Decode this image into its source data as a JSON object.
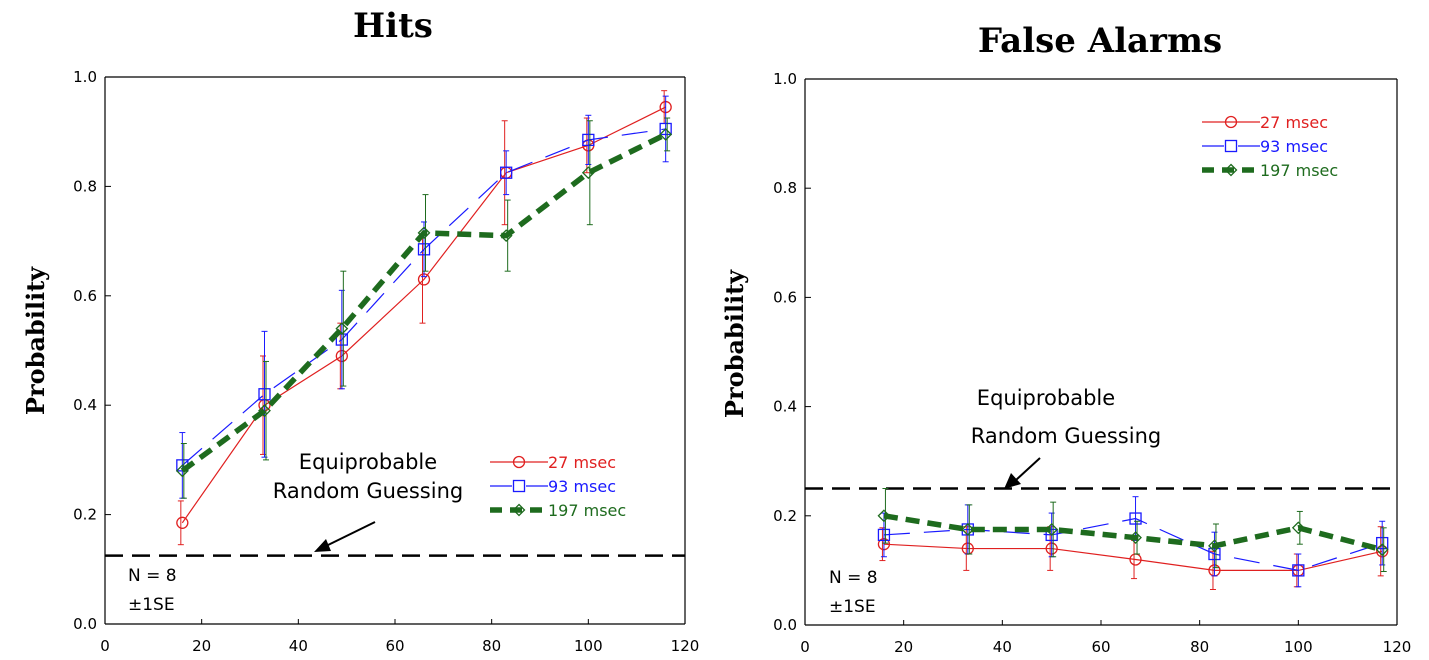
{
  "chart_data": [
    {
      "type": "line",
      "title": "Hits",
      "ylabel": "Probability",
      "xlabel": "",
      "xlim": [
        0,
        120
      ],
      "ylim": [
        0,
        1.0
      ],
      "xticks": [
        0,
        20,
        40,
        60,
        80,
        100,
        120
      ],
      "yticks": [
        0.0,
        0.2,
        0.4,
        0.6,
        0.8,
        1.0
      ],
      "x_tick_labels": [
        "0",
        "20",
        "40",
        "60",
        "80",
        "100",
        "120"
      ],
      "y_tick_labels": [
        "0.0",
        "0.2",
        "0.4",
        "0.6",
        "0.8",
        "1.0"
      ],
      "grid": false,
      "legend_position": "bottom-right",
      "reference_line": {
        "y": 0.125,
        "style": "dashed"
      },
      "annotation": {
        "lines": [
          "Equiprobable",
          "Random Guessing"
        ],
        "arrow_to": [
          42,
          0.13
        ]
      },
      "notes": [
        "N = 8",
        "±1SE"
      ],
      "series": [
        {
          "name": "27 msec",
          "color": "#e02020",
          "marker": "circle",
          "dash": "solid",
          "x": [
            16,
            33,
            49,
            66,
            83,
            100,
            116
          ],
          "y": [
            0.185,
            0.4,
            0.49,
            0.63,
            0.825,
            0.875,
            0.945
          ],
          "err": [
            0.04,
            0.09,
            0.06,
            0.08,
            0.095,
            0.05,
            0.03
          ]
        },
        {
          "name": "93 msec",
          "color": "#1a1aff",
          "marker": "square",
          "dash": "long",
          "x": [
            16,
            33,
            49,
            66,
            83,
            100,
            116
          ],
          "y": [
            0.29,
            0.42,
            0.52,
            0.685,
            0.825,
            0.885,
            0.905
          ],
          "err": [
            0.06,
            0.115,
            0.09,
            0.05,
            0.04,
            0.045,
            0.06
          ]
        },
        {
          "name": "197 msec",
          "color": "#1e6b1e",
          "marker": "diamond",
          "dash": "heavy",
          "x": [
            16,
            33,
            49,
            66,
            83,
            100,
            116
          ],
          "y": [
            0.28,
            0.39,
            0.54,
            0.715,
            0.71,
            0.825,
            0.895
          ],
          "err": [
            0.05,
            0.09,
            0.105,
            0.07,
            0.065,
            0.095,
            0.03
          ]
        }
      ]
    },
    {
      "type": "line",
      "title": "False Alarms",
      "ylabel": "Probability",
      "xlabel": "",
      "xlim": [
        0,
        120
      ],
      "ylim": [
        0,
        1.0
      ],
      "xticks": [
        0,
        20,
        40,
        60,
        80,
        100,
        120
      ],
      "yticks": [
        0.0,
        0.2,
        0.4,
        0.6,
        0.8,
        1.0
      ],
      "x_tick_labels": [
        "0",
        "20",
        "40",
        "60",
        "80",
        "100",
        "120"
      ],
      "y_tick_labels": [
        "0.0",
        "0.2",
        "0.4",
        "0.6",
        "0.8",
        "1.0"
      ],
      "grid": false,
      "legend_position": "top-right",
      "reference_line": {
        "y": 0.25,
        "style": "dashed"
      },
      "annotation": {
        "lines": [
          "Equiprobable",
          "Random Guessing"
        ],
        "arrow_to": [
          36,
          0.255
        ]
      },
      "notes": [
        "N = 8",
        "±1SE"
      ],
      "series": [
        {
          "name": "27 msec",
          "color": "#e02020",
          "marker": "circle",
          "dash": "solid",
          "x": [
            16,
            33,
            50,
            67,
            83,
            100,
            117
          ],
          "y": [
            0.148,
            0.14,
            0.14,
            0.12,
            0.1,
            0.1,
            0.135
          ],
          "err": [
            0.03,
            0.04,
            0.04,
            0.035,
            0.035,
            0.03,
            0.045
          ]
        },
        {
          "name": "93 msec",
          "color": "#1a1aff",
          "marker": "square",
          "dash": "long",
          "x": [
            16,
            33,
            50,
            67,
            83,
            100,
            117
          ],
          "y": [
            0.165,
            0.175,
            0.165,
            0.195,
            0.13,
            0.1,
            0.15
          ],
          "err": [
            0.04,
            0.045,
            0.04,
            0.04,
            0.04,
            0.03,
            0.04
          ]
        },
        {
          "name": "197 msec",
          "color": "#1e6b1e",
          "marker": "diamond",
          "dash": "heavy",
          "x": [
            16,
            33,
            50,
            67,
            83,
            100,
            117
          ],
          "y": [
            0.2,
            0.175,
            0.175,
            0.16,
            0.145,
            0.178,
            0.138
          ],
          "err": [
            0.05,
            0.045,
            0.05,
            0.03,
            0.04,
            0.03,
            0.04
          ]
        }
      ]
    }
  ]
}
